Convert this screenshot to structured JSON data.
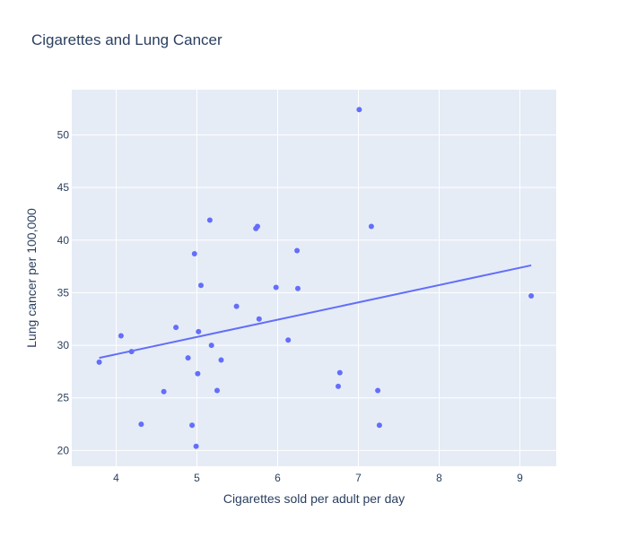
{
  "chart_data": {
    "type": "scatter",
    "title": "Cigarettes and Lung Cancer",
    "xlabel": "Cigarettes sold per adult per day",
    "ylabel": "Lung cancer per 100,000",
    "xlim": [
      3.45,
      9.45
    ],
    "ylim": [
      18.5,
      54.3
    ],
    "xticks": [
      4,
      5,
      6,
      7,
      8,
      9
    ],
    "yticks": [
      20,
      25,
      30,
      35,
      40,
      45,
      50
    ],
    "grid": true,
    "colors": {
      "marker": "#636efa",
      "trendline": "#636efa",
      "plot_bg": "#e5ecf6",
      "grid": "#ffffff",
      "text": "#2a3f5f"
    },
    "series": [
      {
        "mode": "markers",
        "points": [
          [
            3.79,
            28.4
          ],
          [
            4.06,
            30.9
          ],
          [
            4.19,
            29.4
          ],
          [
            4.31,
            22.5
          ],
          [
            4.59,
            25.6
          ],
          [
            4.74,
            31.7
          ],
          [
            4.89,
            28.8
          ],
          [
            4.94,
            22.4
          ],
          [
            4.97,
            38.7
          ],
          [
            4.99,
            20.4
          ],
          [
            5.01,
            27.3
          ],
          [
            5.02,
            31.3
          ],
          [
            5.05,
            35.7
          ],
          [
            5.16,
            41.9
          ],
          [
            5.18,
            30.0
          ],
          [
            5.25,
            25.7
          ],
          [
            5.3,
            28.6
          ],
          [
            5.49,
            33.7
          ],
          [
            5.73,
            41.1
          ],
          [
            5.75,
            41.3
          ],
          [
            5.77,
            32.5
          ],
          [
            5.98,
            35.5
          ],
          [
            6.13,
            30.5
          ],
          [
            6.24,
            39.0
          ],
          [
            6.25,
            35.4
          ],
          [
            6.75,
            26.1
          ],
          [
            6.77,
            27.4
          ],
          [
            7.01,
            52.4
          ],
          [
            7.16,
            41.3
          ],
          [
            7.24,
            25.7
          ],
          [
            7.26,
            22.4
          ],
          [
            9.14,
            34.7
          ]
        ]
      },
      {
        "mode": "lines",
        "points": [
          [
            3.79,
            28.8
          ],
          [
            9.14,
            37.6
          ]
        ]
      }
    ]
  }
}
